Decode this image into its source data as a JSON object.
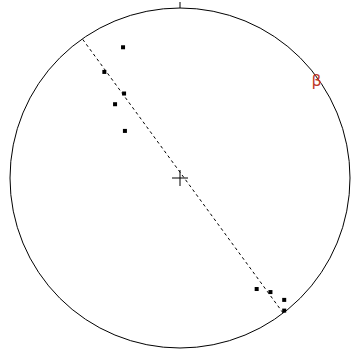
{
  "chart_data": {
    "type": "scatter",
    "x": [
      -0.335,
      -0.445,
      -0.329,
      -0.382,
      -0.324,
      0.451,
      0.532,
      0.613,
      0.613
    ],
    "values": [
      0.769,
      0.624,
      0.497,
      0.434,
      0.277,
      -0.653,
      -0.671,
      -0.717,
      -0.78
    ],
    "xlim": [
      -1,
      1
    ],
    "ylim": [
      -1,
      1
    ],
    "tick_labels": false,
    "color": "#000000",
    "marker": "square",
    "great_circle": {
      "x": [
        -0.572,
        0.613
      ],
      "y": [
        0.815,
        -0.803
      ],
      "line_style": "dashed",
      "color": "#000000"
    },
    "annotations": [
      {
        "text": "β",
        "x": 0.803,
        "y": 0.566,
        "color": "#c0392b"
      }
    ]
  }
}
